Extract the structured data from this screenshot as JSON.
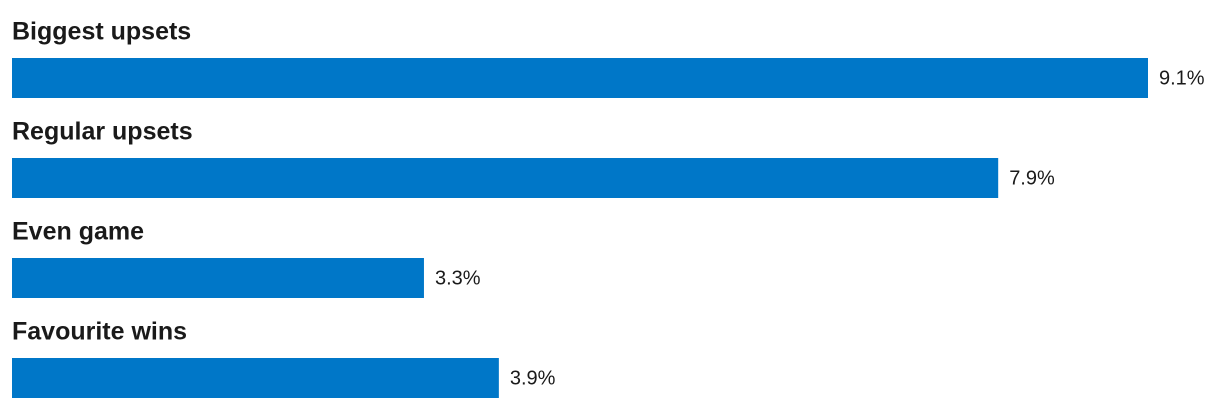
{
  "chart_data": {
    "type": "bar",
    "orientation": "horizontal",
    "categories": [
      "Biggest upsets",
      "Regular upsets",
      "Even game",
      "Favourite wins"
    ],
    "values": [
      9.1,
      7.9,
      3.3,
      3.9
    ],
    "value_labels": [
      "9.1%",
      "7.9%",
      "3.3%",
      "3.9%"
    ],
    "color": "#0077c8"
  }
}
